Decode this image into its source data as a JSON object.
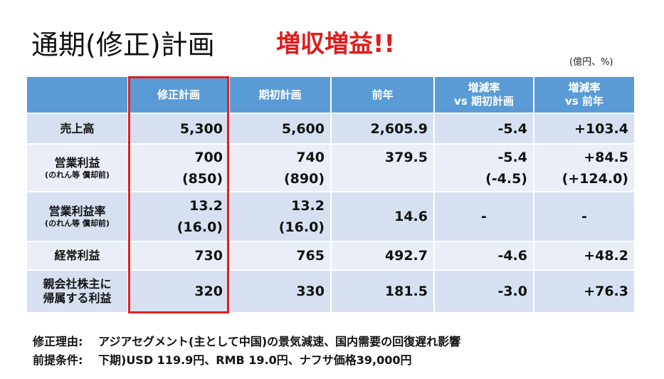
{
  "title": "通期(修正)計画",
  "highlight": "増収増益!!",
  "unit": "(億円、%)",
  "table": {
    "columns": [
      [
        "修正計画"
      ],
      [
        "期初計画"
      ],
      [
        "前年"
      ],
      [
        "増減率",
        "vs 期初計画"
      ],
      [
        "増減率",
        "vs 前年"
      ]
    ],
    "rows": [
      {
        "label": [
          "売上高"
        ],
        "cells": [
          [
            "5,300"
          ],
          [
            "5,600"
          ],
          [
            "2,605.9"
          ],
          [
            "-5.4"
          ],
          [
            "+103.4"
          ]
        ]
      },
      {
        "label": [
          "営業利益",
          "(のれん等 償却前)"
        ],
        "cells": [
          [
            "700",
            "(850)"
          ],
          [
            "740",
            "(890)"
          ],
          [
            "379.5"
          ],
          [
            "-5.4",
            "(-4.5)"
          ],
          [
            "+84.5",
            "(+124.0)"
          ]
        ]
      },
      {
        "label": [
          "営業利益率",
          "(のれん等 償却前)"
        ],
        "cells": [
          [
            "13.2",
            "(16.0)"
          ],
          [
            "13.2",
            "(16.0)"
          ],
          [
            "14.6"
          ],
          [
            "-"
          ],
          [
            "-"
          ]
        ]
      },
      {
        "label": [
          "経常利益"
        ],
        "cells": [
          [
            "730"
          ],
          [
            "765"
          ],
          [
            "492.7"
          ],
          [
            "-4.6"
          ],
          [
            "+48.2"
          ]
        ]
      },
      {
        "label": [
          "親会社株主に",
          "帰属する利益"
        ],
        "cells": [
          [
            "320"
          ],
          [
            "330"
          ],
          [
            "181.5"
          ],
          [
            "-3.0"
          ],
          [
            "+76.3"
          ]
        ]
      }
    ]
  },
  "notes": [
    {
      "label": "修正理由:",
      "text": "アジアセグメント(主として中国)の景気減速、国内需要の回復遅れ影響"
    },
    {
      "label": "前提条件:",
      "text": "下期)USD 119.9円、RMB 19.0円、ナフサ価格39,000円"
    }
  ]
}
